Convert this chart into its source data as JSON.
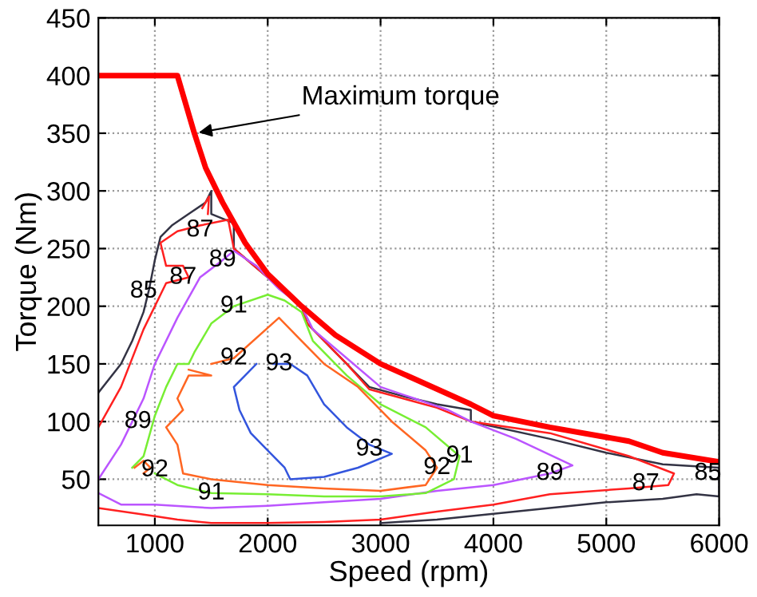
{
  "chart_data": {
    "type": "line",
    "xlabel": "Speed (rpm)",
    "ylabel": "Torque (Nm)",
    "xlim": [
      500,
      6000
    ],
    "ylim": [
      10,
      450
    ],
    "xticks": [
      1000,
      2000,
      3000,
      4000,
      5000,
      6000
    ],
    "yticks": [
      50,
      100,
      150,
      200,
      250,
      300,
      350,
      400,
      450
    ],
    "grid": true,
    "legend": false,
    "marker": "none",
    "line_style": "solid",
    "series": [
      {
        "color": "#333344",
        "x": [
          500,
          700,
          800,
          900,
          950,
          1000,
          1050,
          1150,
          1300,
          1450,
          1500,
          1500,
          1700,
          1700,
          2000,
          2300,
          2350,
          2700,
          2900,
          3200,
          3500,
          3800,
          3800,
          4500,
          5000,
          5500,
          6000,
          6000,
          5800,
          5500,
          5000,
          4500,
          4000,
          3500,
          3000
        ],
        "values": [
          125,
          150,
          170,
          195,
          215,
          240,
          260,
          270,
          280,
          290,
          300,
          280,
          272,
          250,
          225,
          200,
          185,
          150,
          130,
          122,
          115,
          110,
          100,
          85,
          73,
          63,
          60,
          35,
          37,
          33,
          30,
          25,
          20,
          15,
          12
        ]
      },
      {
        "color": "#ff2020",
        "x": [
          500,
          700,
          900,
          1050,
          1100,
          1300,
          1250,
          1100,
          1050,
          1200,
          1400,
          1650,
          1700,
          2000,
          2300,
          2350,
          2700,
          2900,
          3200,
          3500,
          3800,
          4500,
          5200,
          5600,
          5550,
          5200,
          4500,
          4000,
          3500,
          3000,
          2500,
          2000,
          1500,
          1200,
          1000,
          500
        ],
        "values": [
          95,
          130,
          180,
          210,
          220,
          225,
          235,
          235,
          255,
          265,
          270,
          275,
          250,
          225,
          200,
          185,
          150,
          128,
          120,
          112,
          100,
          90,
          70,
          55,
          45,
          42,
          37,
          28,
          22,
          15,
          13,
          12,
          12,
          15,
          18,
          25
        ]
      },
      {
        "color": "#ff2020",
        "x": [
          1420,
          1480,
          1470
        ],
        "values": [
          285,
          295,
          280
        ]
      },
      {
        "color": "#bb55ff",
        "x": [
          500,
          700,
          900,
          1000,
          1200,
          1400,
          1600,
          1700,
          1900,
          2100,
          2300,
          2400,
          2700,
          3000,
          3300,
          3600,
          3800,
          4200,
          4700,
          4500,
          4000,
          3500,
          3000,
          2500,
          2000,
          1500,
          1000,
          700,
          500
        ],
        "values": [
          50,
          80,
          120,
          150,
          190,
          225,
          240,
          248,
          235,
          215,
          200,
          180,
          155,
          130,
          120,
          110,
          100,
          85,
          62,
          55,
          45,
          40,
          33,
          30,
          27,
          25,
          28,
          28,
          38
        ]
      },
      {
        "color": "#77ee33",
        "x": [
          800,
          900,
          1000,
          1100,
          1200,
          1300,
          1350,
          1500,
          1700,
          2000,
          2150,
          2300,
          2400,
          2700,
          3000,
          3400,
          3700,
          3650,
          3400,
          3000,
          2500,
          2000,
          1500,
          1200,
          1000
        ],
        "values": [
          60,
          70,
          105,
          130,
          150,
          150,
          160,
          185,
          200,
          210,
          205,
          195,
          170,
          140,
          115,
          95,
          70,
          50,
          38,
          35,
          35,
          37,
          38,
          45,
          55
        ]
      },
      {
        "color": "#ff6622",
        "x": [
          1500,
          1700,
          2100,
          2300,
          2500,
          2800,
          3100,
          3400,
          3500,
          3400,
          3000,
          2500,
          2000,
          1500,
          1250,
          1200,
          1100,
          1250,
          1200,
          1300,
          1500,
          1300
        ],
        "values": [
          150,
          155,
          190,
          170,
          150,
          130,
          100,
          75,
          60,
          45,
          40,
          42,
          45,
          50,
          55,
          80,
          95,
          110,
          120,
          140,
          140,
          145
        ]
      },
      {
        "color": "#ff6622",
        "x": [
          820,
          900,
          960,
          900
        ],
        "values": [
          60,
          66,
          60,
          55
        ]
      },
      {
        "color": "#3355dd",
        "x": [
          1900,
          1700,
          1750,
          1850,
          2000,
          2150,
          2200,
          2500,
          2800,
          3100,
          2900,
          2700,
          2500,
          2350,
          2200,
          2050
        ],
        "values": [
          150,
          130,
          110,
          90,
          75,
          60,
          50,
          52,
          60,
          72,
          80,
          95,
          115,
          140,
          150,
          150
        ]
      },
      {
        "color": "#ff0000",
        "x": [
          500,
          1200,
          1350,
          1450,
          1600,
          1800,
          2000,
          2300,
          2600,
          3000,
          3300,
          3800,
          4000,
          4500,
          5200,
          5500,
          6000
        ],
        "values": [
          400,
          400,
          350,
          320,
          290,
          255,
          228,
          200,
          175,
          150,
          137,
          115,
          105,
          95,
          83,
          73,
          65
        ]
      }
    ],
    "annotations": [
      {
        "text": "Maximum torque",
        "x": 1350,
        "y": 350
      },
      {
        "text": "85",
        "x": 900,
        "y": 213
      },
      {
        "text": "87",
        "x": 1400,
        "y": 266
      },
      {
        "text": "87",
        "x": 1250,
        "y": 225
      },
      {
        "text": "89",
        "x": 1600,
        "y": 240
      },
      {
        "text": "91",
        "x": 1700,
        "y": 200
      },
      {
        "text": "92",
        "x": 1700,
        "y": 155
      },
      {
        "text": "93",
        "x": 2100,
        "y": 150
      },
      {
        "text": "89",
        "x": 850,
        "y": 100
      },
      {
        "text": "92",
        "x": 1000,
        "y": 58
      },
      {
        "text": "91",
        "x": 1500,
        "y": 38
      },
      {
        "text": "93",
        "x": 2900,
        "y": 76
      },
      {
        "text": "92",
        "x": 3500,
        "y": 60
      },
      {
        "text": "91",
        "x": 3700,
        "y": 70
      },
      {
        "text": "89",
        "x": 4500,
        "y": 55
      },
      {
        "text": "87",
        "x": 5350,
        "y": 46
      },
      {
        "text": "85",
        "x": 5900,
        "y": 55
      }
    ]
  }
}
